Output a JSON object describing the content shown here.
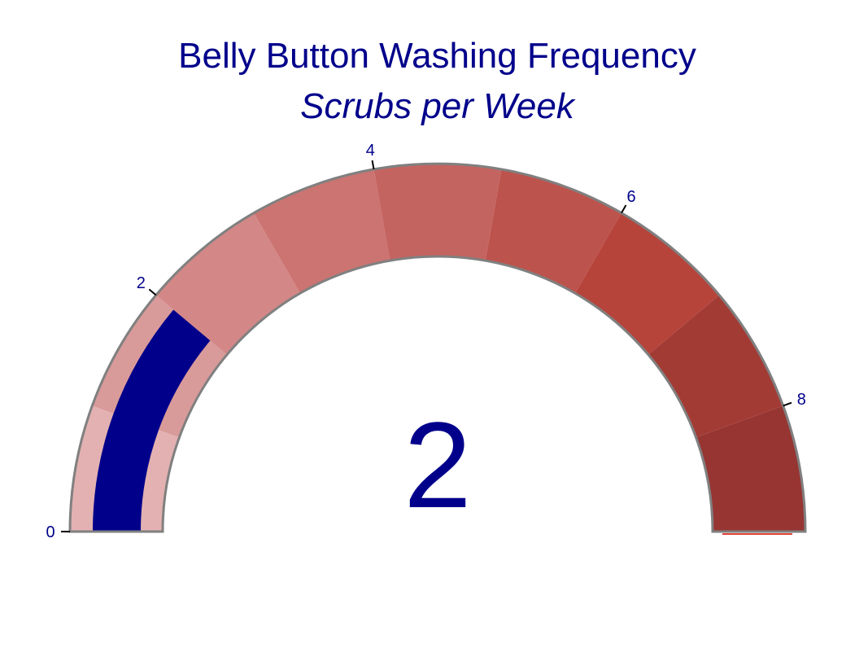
{
  "chart_data": {
    "type": "gauge",
    "title": "Belly Button Washing Frequency",
    "subtitle": "Scrubs per Week",
    "value": 2,
    "range": [
      0,
      9
    ],
    "tick_labels": [
      "0",
      "2",
      "4",
      "6",
      "8"
    ],
    "tick_values": [
      0,
      2,
      4,
      6,
      8
    ],
    "steps": [
      {
        "range": [
          0,
          1
        ],
        "color": "#e3b1b1"
      },
      {
        "range": [
          1,
          2
        ],
        "color": "#d99a9a"
      },
      {
        "range": [
          2,
          3
        ],
        "color": "#d38787"
      },
      {
        "range": [
          3,
          4
        ],
        "color": "#cb7471"
      },
      {
        "range": [
          4,
          5
        ],
        "color": "#c46460"
      },
      {
        "range": [
          5,
          6
        ],
        "color": "#bd534d"
      },
      {
        "range": [
          6,
          7
        ],
        "color": "#b6443b"
      },
      {
        "range": [
          7,
          8
        ],
        "color": "#a33b35"
      },
      {
        "range": [
          8,
          9
        ],
        "color": "#963532"
      }
    ],
    "bar_color": "#00008b",
    "border_color": "#808080",
    "threshold_color": "#e0403a"
  }
}
